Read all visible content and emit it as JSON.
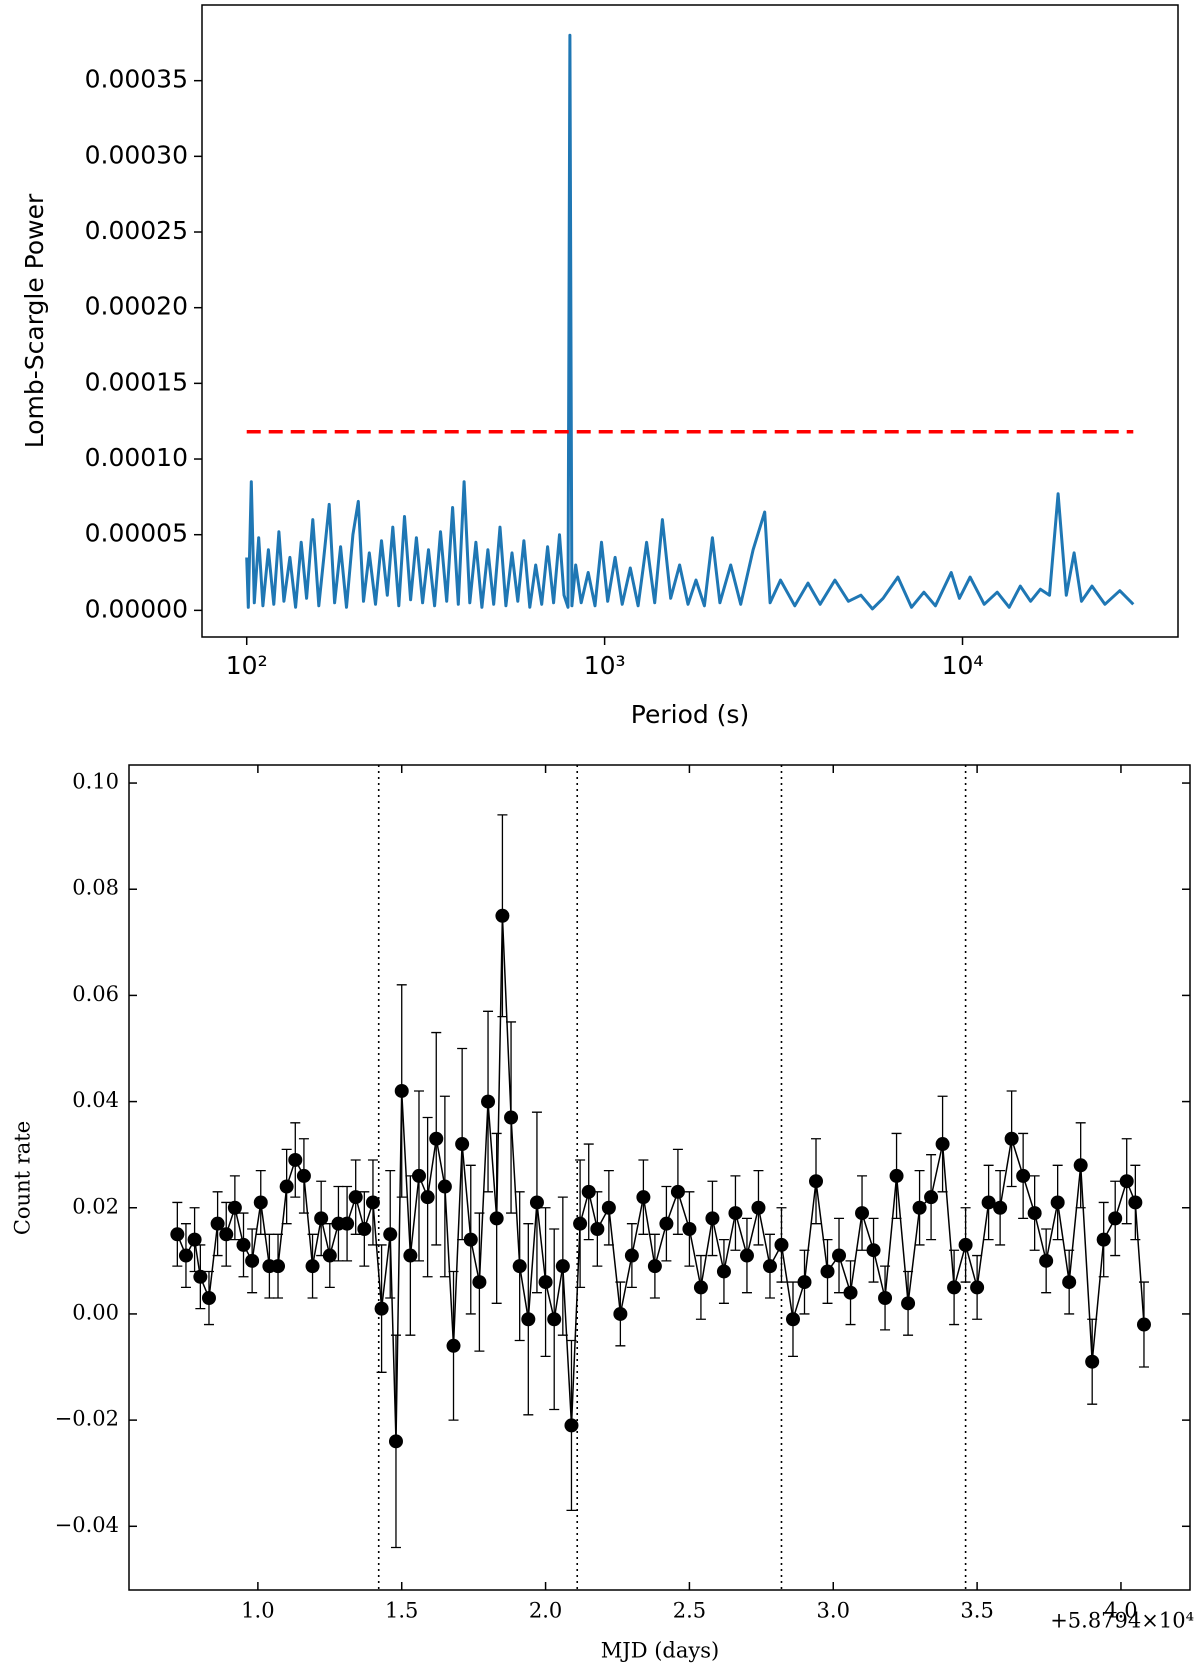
{
  "chart_data": [
    {
      "type": "line",
      "xlabel": "Period (s)",
      "ylabel": "Lomb-Scargle Power",
      "xscale": "log",
      "color": "#1f77b4",
      "threshold": 0.000118,
      "threshold_color": "#ff0000",
      "xlim": [
        75,
        40000
      ],
      "ylim": [
        -1.76e-05,
        0.0004
      ],
      "xticks": [
        {
          "value": 100,
          "label": "10²"
        },
        {
          "value": 1000,
          "label": "10³"
        },
        {
          "value": 10000,
          "label": "10⁴"
        }
      ],
      "yticks": [
        {
          "value": 0,
          "label": "0.00000"
        },
        {
          "value": 5e-05,
          "label": "0.00005"
        },
        {
          "value": 0.0001,
          "label": "0.00010"
        },
        {
          "value": 0.00015,
          "label": "0.00015"
        },
        {
          "value": 0.0002,
          "label": "0.00020"
        },
        {
          "value": 0.00025,
          "label": "0.00025"
        },
        {
          "value": 0.0003,
          "label": "0.00030"
        },
        {
          "value": 0.00035,
          "label": "0.00035"
        }
      ],
      "x": [
        100,
        101,
        103,
        105,
        108,
        111,
        115,
        119,
        123,
        127,
        132,
        137,
        142,
        147,
        153,
        159,
        165,
        170,
        176,
        183,
        190,
        198,
        205,
        212,
        220,
        229,
        238,
        247,
        256,
        266,
        276,
        287,
        298,
        310,
        322,
        335,
        348,
        362,
        376,
        390,
        405,
        420,
        437,
        454,
        472,
        490,
        510,
        530,
        551,
        572,
        595,
        618,
        642,
        667,
        693,
        720,
        748,
        770,
        790,
        800,
        810,
        830,
        860,
        900,
        940,
        980,
        1020,
        1070,
        1120,
        1180,
        1240,
        1310,
        1380,
        1450,
        1530,
        1620,
        1710,
        1800,
        1900,
        2000,
        2100,
        2250,
        2400,
        2600,
        2800,
        2900,
        3100,
        3400,
        3700,
        4000,
        4400,
        4800,
        5200,
        5600,
        6000,
        6600,
        7200,
        7800,
        8400,
        9300,
        9800,
        10500,
        11500,
        12500,
        13500,
        14500,
        15500,
        16500,
        17500,
        18500,
        19500,
        20500,
        21500,
        23000,
        25000,
        27500,
        30000
      ],
      "values": [
        3.5e-05,
        2e-06,
        8.5e-05,
        5e-06,
        4.8e-05,
        3e-06,
        4e-05,
        4e-06,
        5.2e-05,
        6e-06,
        3.5e-05,
        2e-06,
        4.5e-05,
        8e-06,
        6e-05,
        3e-06,
        4e-05,
        7e-05,
        5e-06,
        4.2e-05,
        2e-06,
        5e-05,
        7.2e-05,
        6e-06,
        3.8e-05,
        4e-06,
        4.6e-05,
        1e-05,
        5.5e-05,
        3e-06,
        6.2e-05,
        7e-06,
        4.8e-05,
        5e-06,
        4e-05,
        3e-06,
        5.2e-05,
        6e-06,
        6.8e-05,
        4e-06,
        8.5e-05,
        5e-06,
        4.5e-05,
        2e-06,
        4e-05,
        4e-06,
        5.5e-05,
        3e-06,
        3.8e-05,
        6e-06,
        4.6e-05,
        2e-06,
        3e-05,
        4e-06,
        4.2e-05,
        5e-06,
        5e-05,
        1e-05,
        2e-06,
        0.00038,
        3e-06,
        3e-05,
        5e-06,
        2.5e-05,
        3e-06,
        4.5e-05,
        6e-06,
        3.5e-05,
        4e-06,
        2.8e-05,
        3e-06,
        4.5e-05,
        5e-06,
        6e-05,
        8e-06,
        3e-05,
        4e-06,
        2e-05,
        3e-06,
        4.8e-05,
        5e-06,
        3e-05,
        4e-06,
        4e-05,
        6.5e-05,
        5e-06,
        2e-05,
        3e-06,
        1.8e-05,
        4e-06,
        2e-05,
        6e-06,
        1e-05,
        1e-06,
        8e-06,
        2.2e-05,
        2e-06,
        1.2e-05,
        3e-06,
        2.5e-05,
        8e-06,
        2.2e-05,
        4e-06,
        1.2e-05,
        2e-06,
        1.6e-05,
        6e-06,
        1.4e-05,
        1e-05,
        7.7e-05,
        1e-05,
        3.8e-05,
        6e-06,
        1.6e-05,
        4e-06,
        1.3e-05,
        4e-06
      ]
    },
    {
      "type": "errorbar",
      "xlabel": "MJD (days)",
      "ylabel": "Count rate",
      "offset": "+5.8794×10⁴",
      "color": "#000000",
      "vlines": [
        1.42,
        2.11,
        2.82,
        3.46
      ],
      "xlim": [
        0.552,
        4.24
      ],
      "ylim": [
        -0.052,
        0.1034
      ],
      "xticks": [
        {
          "value": 1,
          "label": "1.0"
        },
        1.5,
        {
          "value": 2,
          "label": "2.0"
        },
        2.5,
        {
          "value": 3,
          "label": "3.0"
        },
        3.5,
        {
          "value": 4,
          "label": "4.0"
        }
      ],
      "yticks": [
        {
          "value": -0.04,
          "label": "−0.04"
        },
        {
          "value": -0.02,
          "label": "−0.02"
        },
        {
          "value": 0,
          "label": "0.00"
        },
        0.02,
        0.04,
        0.06,
        0.08,
        {
          "value": 0.1,
          "label": "0.10"
        }
      ],
      "x": [
        0.72,
        0.75,
        0.78,
        0.8,
        0.83,
        0.86,
        0.89,
        0.92,
        0.95,
        0.98,
        1.01,
        1.04,
        1.07,
        1.1,
        1.13,
        1.16,
        1.19,
        1.22,
        1.25,
        1.28,
        1.31,
        1.34,
        1.37,
        1.4,
        1.43,
        1.46,
        1.48,
        1.5,
        1.53,
        1.56,
        1.59,
        1.62,
        1.65,
        1.68,
        1.71,
        1.74,
        1.77,
        1.8,
        1.83,
        1.85,
        1.88,
        1.91,
        1.94,
        1.97,
        2.0,
        2.03,
        2.06,
        2.09,
        2.12,
        2.15,
        2.18,
        2.22,
        2.26,
        2.3,
        2.34,
        2.38,
        2.42,
        2.46,
        2.5,
        2.54,
        2.58,
        2.62,
        2.66,
        2.7,
        2.74,
        2.78,
        2.82,
        2.86,
        2.9,
        2.94,
        2.98,
        3.02,
        3.06,
        3.1,
        3.14,
        3.18,
        3.22,
        3.26,
        3.3,
        3.34,
        3.38,
        3.42,
        3.46,
        3.5,
        3.54,
        3.58,
        3.62,
        3.66,
        3.7,
        3.74,
        3.78,
        3.82,
        3.86,
        3.9,
        3.94,
        3.98,
        4.02,
        4.05,
        4.08
      ],
      "values": [
        0.015,
        0.011,
        0.014,
        0.007,
        0.003,
        0.017,
        0.015,
        0.02,
        0.013,
        0.01,
        0.021,
        0.009,
        0.009,
        0.024,
        0.029,
        0.026,
        0.009,
        0.018,
        0.011,
        0.017,
        0.017,
        0.022,
        0.016,
        0.021,
        0.001,
        0.015,
        -0.024,
        0.042,
        0.011,
        0.026,
        0.022,
        0.033,
        0.024,
        -0.006,
        0.032,
        0.014,
        0.006,
        0.04,
        0.018,
        0.075,
        0.037,
        0.009,
        -0.001,
        0.021,
        0.006,
        -0.001,
        0.009,
        -0.021,
        0.017,
        0.023,
        0.016,
        0.02,
        0.0,
        0.011,
        0.022,
        0.009,
        0.017,
        0.023,
        0.016,
        0.005,
        0.018,
        0.008,
        0.019,
        0.011,
        0.02,
        0.009,
        0.013,
        -0.001,
        0.006,
        0.025,
        0.008,
        0.011,
        0.004,
        0.019,
        0.012,
        0.003,
        0.026,
        0.002,
        0.02,
        0.022,
        0.032,
        0.005,
        0.013,
        0.005,
        0.021,
        0.02,
        0.033,
        0.026,
        0.019,
        0.01,
        0.021,
        0.006,
        0.028,
        -0.009,
        0.014,
        0.018,
        0.025,
        0.021,
        -0.002
      ],
      "errors": [
        0.006,
        0.006,
        0.006,
        0.006,
        0.005,
        0.006,
        0.006,
        0.006,
        0.006,
        0.006,
        0.006,
        0.006,
        0.006,
        0.007,
        0.007,
        0.007,
        0.006,
        0.007,
        0.006,
        0.007,
        0.007,
        0.007,
        0.007,
        0.008,
        0.012,
        0.012,
        0.02,
        0.02,
        0.015,
        0.016,
        0.015,
        0.02,
        0.017,
        0.014,
        0.018,
        0.014,
        0.013,
        0.017,
        0.016,
        0.019,
        0.018,
        0.014,
        0.018,
        0.017,
        0.014,
        0.017,
        0.013,
        0.016,
        0.012,
        0.009,
        0.007,
        0.007,
        0.006,
        0.006,
        0.007,
        0.006,
        0.007,
        0.008,
        0.007,
        0.006,
        0.007,
        0.006,
        0.007,
        0.007,
        0.007,
        0.006,
        0.007,
        0.007,
        0.006,
        0.008,
        0.006,
        0.007,
        0.006,
        0.007,
        0.006,
        0.006,
        0.008,
        0.006,
        0.007,
        0.008,
        0.009,
        0.007,
        0.007,
        0.006,
        0.007,
        0.007,
        0.009,
        0.008,
        0.007,
        0.006,
        0.007,
        0.006,
        0.008,
        0.008,
        0.007,
        0.007,
        0.008,
        0.007,
        0.008
      ]
    }
  ]
}
